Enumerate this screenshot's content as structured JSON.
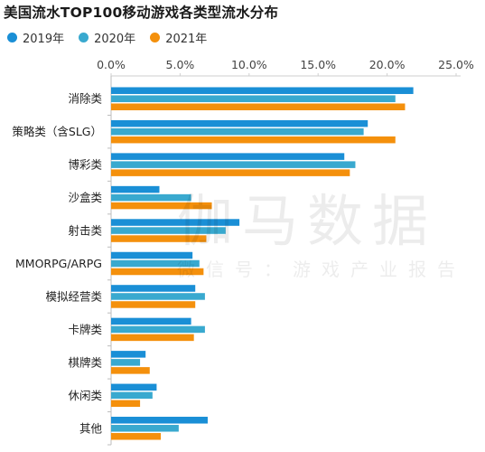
{
  "watermark": {
    "main": "伽马数据",
    "sub": "微信号：游戏产业报告"
  },
  "chart_data": {
    "type": "bar",
    "orientation": "horizontal",
    "title": "美国流水TOP100移动游戏各类型流水分布",
    "x_ticks": [
      "0.0%",
      "5.0%",
      "10.0%",
      "15.0%",
      "20.0%",
      "25.0%"
    ],
    "xlim": [
      0,
      25
    ],
    "x_axis_position": "top",
    "grid": false,
    "legend_position": "top-left",
    "categories": [
      "消除类",
      "策略类（含SLG）",
      "博彩类",
      "沙盒类",
      "射击类",
      "MMORPG/ARPG",
      "模拟经营类",
      "卡牌类",
      "棋牌类",
      "休闲类",
      "其他"
    ],
    "series": [
      {
        "name": "2019年",
        "color": "#1a8fd6",
        "values": [
          21.9,
          18.6,
          16.9,
          3.5,
          9.3,
          5.9,
          6.1,
          5.8,
          2.5,
          3.3,
          7.0
        ]
      },
      {
        "name": "2020年",
        "color": "#39a9cf",
        "values": [
          20.6,
          18.3,
          17.7,
          5.8,
          8.3,
          6.4,
          6.8,
          6.8,
          2.1,
          3.0,
          4.9
        ]
      },
      {
        "name": "2021年",
        "color": "#f4900c",
        "values": [
          21.3,
          20.6,
          17.3,
          7.3,
          6.9,
          6.7,
          6.1,
          6.0,
          2.8,
          2.1,
          3.6
        ]
      }
    ]
  }
}
